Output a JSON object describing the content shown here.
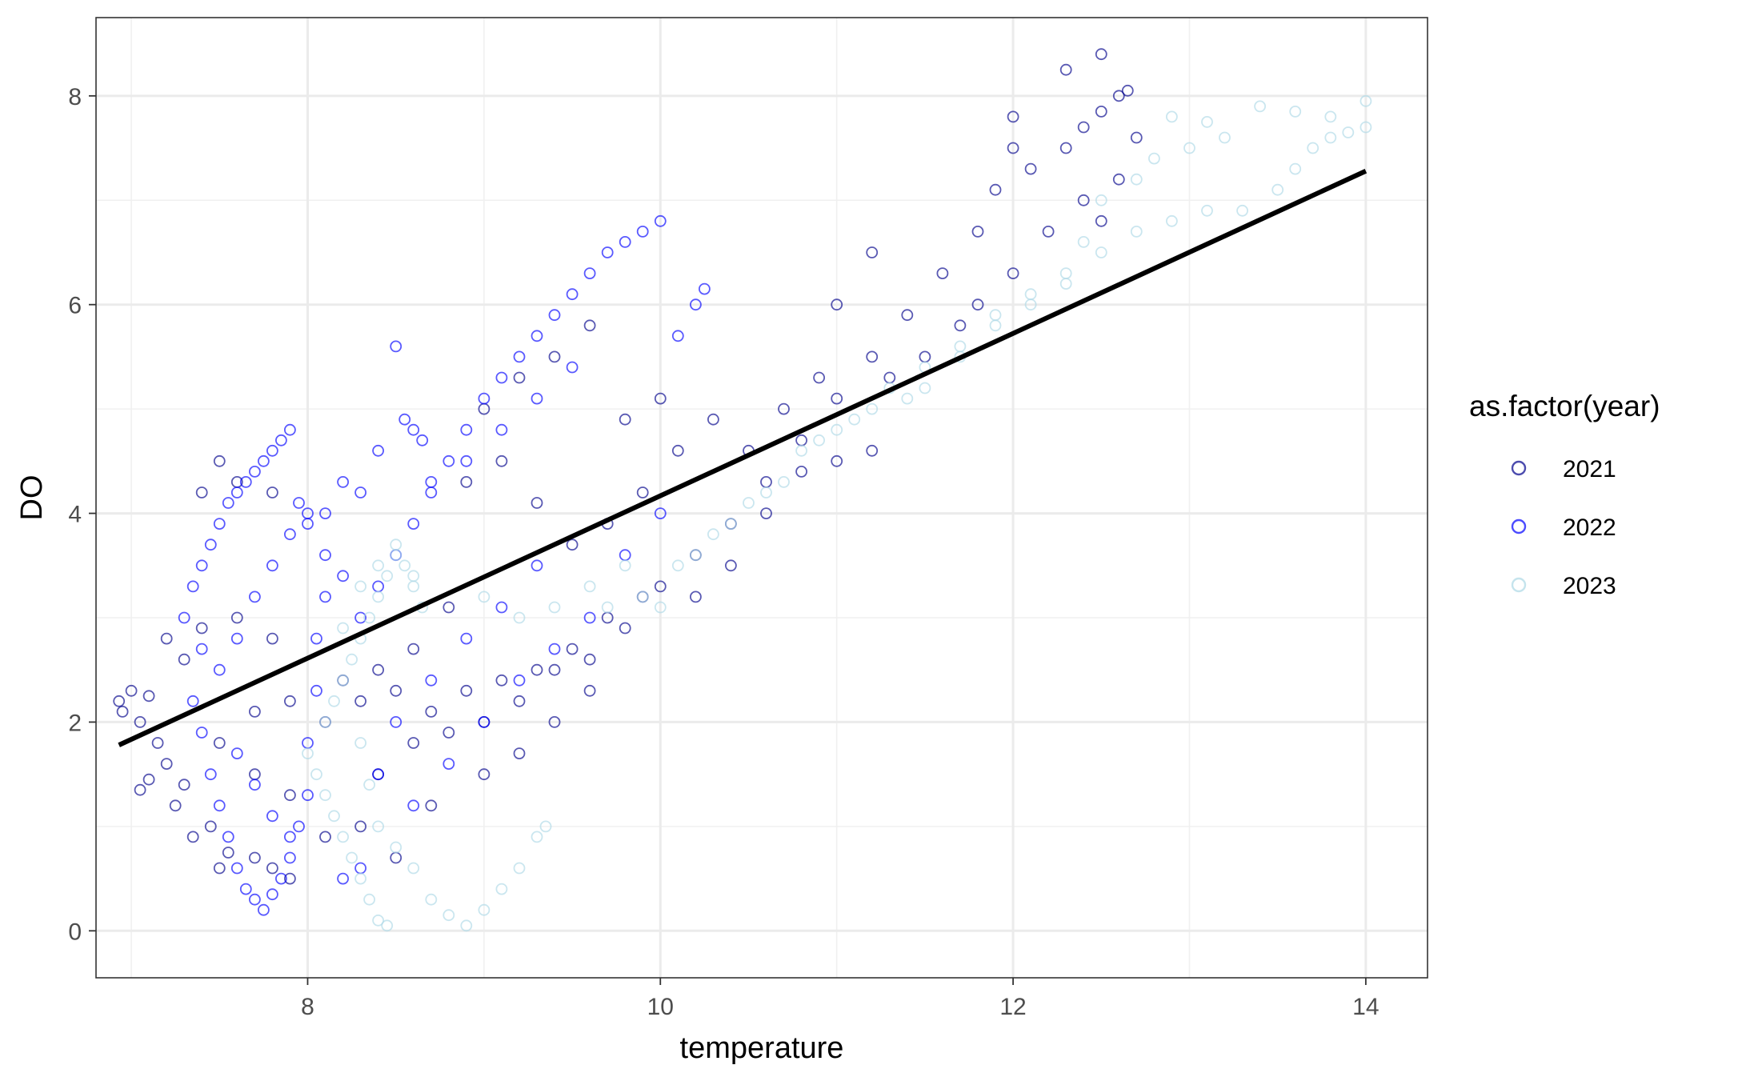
{
  "chart_data": {
    "type": "scatter",
    "xlabel": "temperature",
    "ylabel": "DO",
    "xlim": [
      6.8,
      14.35
    ],
    "ylim": [
      -0.45,
      8.75
    ],
    "x_ticks": [
      8,
      10,
      12,
      14
    ],
    "y_ticks": [
      0,
      2,
      4,
      6,
      8
    ],
    "grid": true,
    "marker": "open-circle",
    "legend": {
      "title": "as.factor(year)",
      "position": "right",
      "entries": [
        {
          "label": "2021",
          "color": "#00008B"
        },
        {
          "label": "2022",
          "color": "#0000FF"
        },
        {
          "label": "2023",
          "color": "#ADD8E6"
        }
      ]
    },
    "series": [
      {
        "name": "2021",
        "color": "#00008B",
        "points": [
          [
            6.93,
            2.2
          ],
          [
            6.95,
            2.1
          ],
          [
            7.0,
            2.3
          ],
          [
            7.05,
            2.0
          ],
          [
            7.1,
            2.25
          ],
          [
            7.15,
            1.8
          ],
          [
            7.05,
            1.35
          ],
          [
            7.1,
            1.45
          ],
          [
            7.2,
            1.6
          ],
          [
            7.25,
            1.2
          ],
          [
            7.3,
            1.4
          ],
          [
            7.35,
            0.9
          ],
          [
            7.45,
            1.0
          ],
          [
            7.5,
            0.6
          ],
          [
            7.55,
            0.75
          ],
          [
            7.7,
            0.7
          ],
          [
            7.8,
            0.6
          ],
          [
            7.9,
            0.5
          ],
          [
            7.4,
            4.2
          ],
          [
            7.5,
            4.5
          ],
          [
            7.6,
            4.3
          ],
          [
            7.8,
            4.2
          ],
          [
            7.7,
            2.1
          ],
          [
            7.9,
            2.2
          ],
          [
            8.1,
            2.0
          ],
          [
            8.3,
            2.2
          ],
          [
            8.5,
            2.3
          ],
          [
            8.7,
            2.1
          ],
          [
            8.9,
            2.3
          ],
          [
            9.1,
            2.4
          ],
          [
            9.3,
            2.5
          ],
          [
            9.5,
            2.7
          ],
          [
            9.7,
            3.0
          ],
          [
            9.9,
            3.2
          ],
          [
            8.4,
            1.5
          ],
          [
            8.6,
            1.8
          ],
          [
            8.8,
            1.9
          ],
          [
            9.0,
            2.0
          ],
          [
            9.2,
            2.2
          ],
          [
            9.4,
            2.5
          ],
          [
            9.6,
            2.6
          ],
          [
            9.8,
            2.9
          ],
          [
            10.0,
            3.3
          ],
          [
            10.2,
            3.6
          ],
          [
            10.4,
            3.9
          ],
          [
            10.6,
            4.3
          ],
          [
            10.8,
            4.7
          ],
          [
            11.0,
            5.1
          ],
          [
            11.2,
            5.5
          ],
          [
            11.4,
            5.9
          ],
          [
            11.6,
            6.3
          ],
          [
            11.8,
            6.7
          ],
          [
            11.9,
            7.1
          ],
          [
            12.0,
            7.5
          ],
          [
            12.0,
            7.8
          ],
          [
            12.1,
            7.3
          ],
          [
            12.3,
            7.5
          ],
          [
            12.4,
            7.7
          ],
          [
            12.5,
            7.85
          ],
          [
            12.6,
            8.0
          ],
          [
            12.65,
            8.05
          ],
          [
            12.5,
            8.4
          ],
          [
            12.3,
            8.25
          ],
          [
            12.4,
            7.0
          ],
          [
            12.5,
            6.8
          ],
          [
            12.6,
            7.2
          ],
          [
            12.7,
            7.6
          ],
          [
            12.2,
            6.7
          ],
          [
            12.0,
            6.3
          ],
          [
            11.8,
            6.0
          ],
          [
            11.7,
            5.8
          ],
          [
            11.5,
            5.5
          ],
          [
            11.3,
            5.3
          ],
          [
            11.2,
            6.5
          ],
          [
            11.0,
            6.0
          ],
          [
            10.9,
            5.3
          ],
          [
            10.7,
            5.0
          ],
          [
            10.5,
            4.6
          ],
          [
            10.3,
            4.9
          ],
          [
            10.1,
            4.6
          ],
          [
            9.9,
            4.2
          ],
          [
            9.7,
            3.9
          ],
          [
            9.5,
            3.7
          ],
          [
            9.3,
            4.1
          ],
          [
            9.1,
            4.5
          ],
          [
            8.9,
            4.3
          ],
          [
            9.0,
            5.0
          ],
          [
            9.2,
            5.3
          ],
          [
            9.4,
            5.5
          ],
          [
            9.6,
            5.8
          ],
          [
            9.8,
            4.9
          ],
          [
            10.0,
            5.1
          ],
          [
            8.8,
            3.1
          ],
          [
            8.6,
            2.7
          ],
          [
            8.4,
            2.5
          ],
          [
            8.2,
            2.4
          ],
          [
            9.0,
            1.5
          ],
          [
            9.2,
            1.7
          ],
          [
            9.4,
            2.0
          ],
          [
            9.6,
            2.3
          ],
          [
            10.2,
            3.2
          ],
          [
            10.4,
            3.5
          ],
          [
            10.6,
            4.0
          ],
          [
            10.8,
            4.4
          ],
          [
            11.0,
            4.5
          ],
          [
            11.2,
            4.6
          ],
          [
            8.1,
            0.9
          ],
          [
            8.3,
            1.0
          ],
          [
            8.5,
            0.7
          ],
          [
            8.7,
            1.2
          ],
          [
            7.3,
            2.6
          ],
          [
            7.4,
            2.9
          ],
          [
            7.6,
            3.0
          ],
          [
            7.8,
            2.8
          ],
          [
            7.2,
            2.8
          ],
          [
            7.5,
            1.8
          ],
          [
            7.7,
            1.5
          ],
          [
            7.9,
            1.3
          ]
        ]
      },
      {
        "name": "2022",
        "color": "#0000FF",
        "points": [
          [
            7.3,
            3.0
          ],
          [
            7.35,
            3.3
          ],
          [
            7.4,
            3.5
          ],
          [
            7.45,
            3.7
          ],
          [
            7.5,
            3.9
          ],
          [
            7.55,
            4.1
          ],
          [
            7.6,
            4.2
          ],
          [
            7.65,
            4.3
          ],
          [
            7.7,
            4.4
          ],
          [
            7.75,
            4.5
          ],
          [
            7.8,
            4.6
          ],
          [
            7.85,
            4.7
          ],
          [
            7.9,
            4.8
          ],
          [
            7.35,
            2.2
          ],
          [
            7.4,
            1.9
          ],
          [
            7.45,
            1.5
          ],
          [
            7.5,
            1.2
          ],
          [
            7.55,
            0.9
          ],
          [
            7.6,
            0.6
          ],
          [
            7.65,
            0.4
          ],
          [
            7.7,
            0.3
          ],
          [
            7.75,
            0.2
          ],
          [
            7.8,
            0.35
          ],
          [
            7.85,
            0.5
          ],
          [
            7.9,
            0.7
          ],
          [
            7.95,
            1.0
          ],
          [
            8.0,
            1.3
          ],
          [
            8.0,
            1.8
          ],
          [
            8.05,
            2.3
          ],
          [
            8.05,
            2.8
          ],
          [
            8.1,
            3.2
          ],
          [
            8.1,
            3.6
          ],
          [
            8.0,
            3.9
          ],
          [
            7.95,
            4.1
          ],
          [
            8.2,
            3.4
          ],
          [
            8.3,
            3.0
          ],
          [
            8.4,
            3.3
          ],
          [
            8.5,
            3.6
          ],
          [
            8.6,
            3.9
          ],
          [
            8.7,
            4.2
          ],
          [
            8.8,
            4.5
          ],
          [
            8.9,
            4.8
          ],
          [
            9.0,
            5.1
          ],
          [
            9.1,
            5.3
          ],
          [
            9.2,
            5.5
          ],
          [
            9.3,
            5.7
          ],
          [
            9.4,
            5.9
          ],
          [
            9.5,
            6.1
          ],
          [
            9.6,
            6.3
          ],
          [
            9.7,
            6.5
          ],
          [
            9.8,
            6.6
          ],
          [
            9.9,
            6.7
          ],
          [
            10.0,
            6.8
          ],
          [
            10.1,
            5.7
          ],
          [
            10.2,
            6.0
          ],
          [
            10.25,
            6.15
          ],
          [
            9.5,
            5.4
          ],
          [
            9.3,
            5.1
          ],
          [
            9.1,
            4.8
          ],
          [
            8.9,
            4.5
          ],
          [
            8.7,
            4.3
          ],
          [
            8.55,
            4.9
          ],
          [
            8.65,
            4.7
          ],
          [
            8.5,
            5.6
          ],
          [
            8.3,
            4.2
          ],
          [
            8.1,
            4.0
          ],
          [
            8.4,
            1.5
          ],
          [
            8.6,
            1.2
          ],
          [
            8.8,
            1.6
          ],
          [
            9.0,
            2.0
          ],
          [
            9.2,
            2.4
          ],
          [
            9.4,
            2.7
          ],
          [
            9.6,
            3.0
          ],
          [
            9.8,
            3.6
          ],
          [
            10.0,
            4.0
          ],
          [
            8.3,
            0.6
          ],
          [
            8.2,
            0.5
          ],
          [
            8.5,
            2.0
          ],
          [
            8.7,
            2.4
          ],
          [
            8.9,
            2.8
          ],
          [
            9.1,
            3.1
          ],
          [
            9.3,
            3.5
          ],
          [
            8.2,
            4.3
          ],
          [
            8.4,
            4.6
          ],
          [
            8.6,
            4.8
          ],
          [
            7.5,
            2.5
          ],
          [
            7.6,
            2.8
          ],
          [
            7.7,
            3.2
          ],
          [
            7.8,
            3.5
          ],
          [
            7.9,
            3.8
          ],
          [
            8.0,
            4.0
          ],
          [
            7.4,
            2.7
          ],
          [
            7.6,
            1.7
          ],
          [
            7.7,
            1.4
          ],
          [
            7.8,
            1.1
          ],
          [
            7.9,
            0.9
          ]
        ]
      },
      {
        "name": "2023",
        "color": "#ADD8E6",
        "points": [
          [
            8.0,
            1.7
          ],
          [
            8.05,
            1.5
          ],
          [
            8.1,
            1.3
          ],
          [
            8.15,
            1.1
          ],
          [
            8.2,
            0.9
          ],
          [
            8.25,
            0.7
          ],
          [
            8.3,
            0.5
          ],
          [
            8.35,
            0.3
          ],
          [
            8.4,
            0.1
          ],
          [
            8.45,
            0.05
          ],
          [
            8.1,
            2.0
          ],
          [
            8.15,
            2.2
          ],
          [
            8.2,
            2.4
          ],
          [
            8.25,
            2.6
          ],
          [
            8.3,
            2.8
          ],
          [
            8.35,
            3.0
          ],
          [
            8.4,
            3.2
          ],
          [
            8.45,
            3.4
          ],
          [
            8.5,
            3.6
          ],
          [
            8.55,
            3.5
          ],
          [
            8.6,
            3.3
          ],
          [
            8.65,
            3.1
          ],
          [
            8.3,
            1.8
          ],
          [
            8.35,
            1.4
          ],
          [
            8.4,
            1.0
          ],
          [
            8.5,
            0.8
          ],
          [
            8.6,
            0.6
          ],
          [
            8.7,
            0.3
          ],
          [
            8.8,
            0.15
          ],
          [
            8.9,
            0.05
          ],
          [
            9.0,
            0.2
          ],
          [
            9.1,
            0.4
          ],
          [
            9.2,
            0.6
          ],
          [
            9.3,
            0.9
          ],
          [
            9.35,
            1.0
          ],
          [
            9.0,
            3.2
          ],
          [
            9.2,
            3.0
          ],
          [
            9.4,
            3.1
          ],
          [
            9.6,
            3.3
          ],
          [
            9.8,
            3.5
          ],
          [
            10.0,
            3.1
          ],
          [
            10.2,
            3.6
          ],
          [
            10.4,
            3.9
          ],
          [
            10.6,
            4.2
          ],
          [
            10.8,
            4.6
          ],
          [
            11.0,
            4.8
          ],
          [
            11.2,
            5.0
          ],
          [
            11.4,
            5.1
          ],
          [
            11.5,
            5.4
          ],
          [
            11.7,
            5.6
          ],
          [
            11.9,
            5.9
          ],
          [
            12.1,
            6.0
          ],
          [
            12.3,
            6.2
          ],
          [
            12.5,
            6.5
          ],
          [
            12.7,
            6.7
          ],
          [
            12.9,
            6.8
          ],
          [
            13.1,
            6.9
          ],
          [
            13.3,
            6.9
          ],
          [
            13.5,
            7.1
          ],
          [
            13.6,
            7.3
          ],
          [
            13.7,
            7.5
          ],
          [
            13.8,
            7.6
          ],
          [
            13.9,
            7.65
          ],
          [
            14.0,
            7.7
          ],
          [
            14.0,
            7.95
          ],
          [
            13.8,
            7.8
          ],
          [
            13.6,
            7.85
          ],
          [
            13.4,
            7.9
          ],
          [
            13.2,
            7.6
          ],
          [
            13.0,
            7.5
          ],
          [
            12.8,
            7.4
          ],
          [
            12.9,
            7.8
          ],
          [
            13.1,
            7.75
          ],
          [
            12.7,
            7.2
          ],
          [
            12.5,
            7.0
          ],
          [
            12.4,
            6.6
          ],
          [
            12.3,
            6.3
          ],
          [
            12.1,
            6.1
          ],
          [
            11.9,
            5.8
          ],
          [
            11.7,
            5.5
          ],
          [
            11.5,
            5.2
          ],
          [
            11.3,
            5.2
          ],
          [
            11.1,
            4.9
          ],
          [
            10.9,
            4.7
          ],
          [
            10.7,
            4.3
          ],
          [
            10.5,
            4.1
          ],
          [
            10.3,
            3.8
          ],
          [
            10.1,
            3.5
          ],
          [
            9.9,
            3.2
          ],
          [
            9.7,
            3.1
          ],
          [
            8.2,
            2.9
          ],
          [
            8.3,
            3.3
          ],
          [
            8.4,
            3.5
          ],
          [
            8.5,
            3.7
          ],
          [
            8.6,
            3.4
          ]
        ]
      }
    ],
    "trend_line": {
      "color": "#000000",
      "points": [
        [
          6.93,
          1.78
        ],
        [
          14.0,
          7.28
        ]
      ]
    }
  }
}
